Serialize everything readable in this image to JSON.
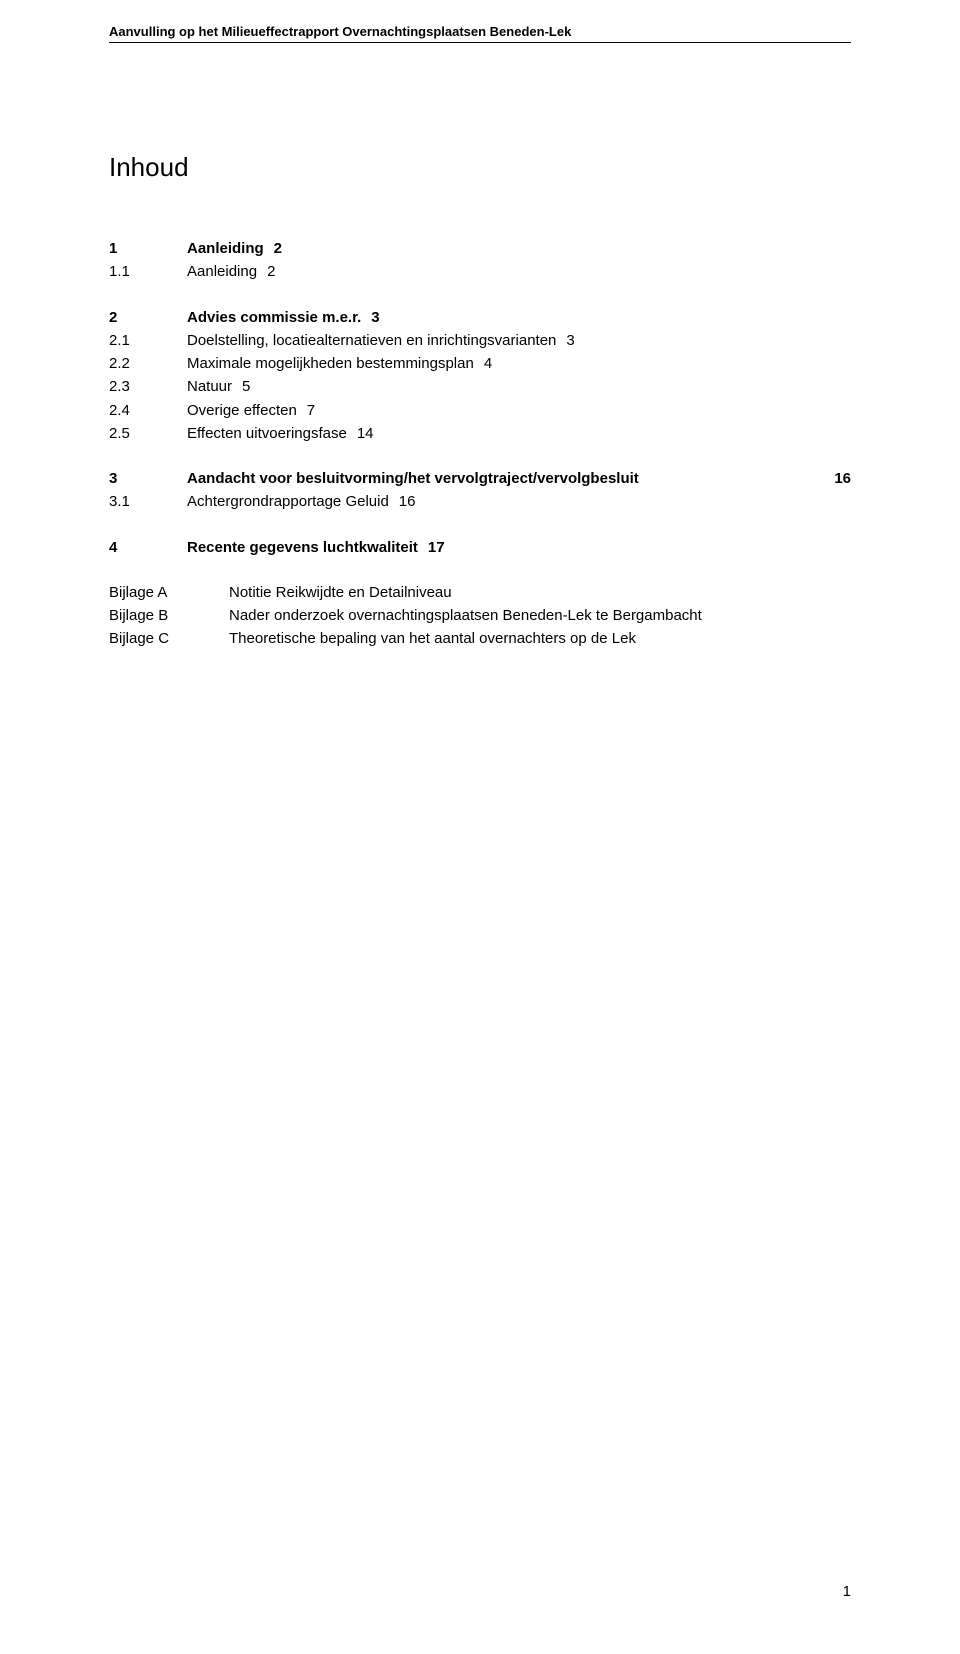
{
  "header": {
    "title": "Aanvulling op het Milieueffectrapport Overnachtingsplaatsen Beneden-Lek"
  },
  "doc": {
    "title": "Inhoud"
  },
  "toc": [
    {
      "num": "1",
      "text": "Aanleiding",
      "page": "2",
      "bold": true
    },
    {
      "num": "1.1",
      "text": "Aanleiding",
      "page": "2",
      "bold": false
    },
    {
      "gap": "med"
    },
    {
      "num": "2",
      "text": "Advies commissie m.e.r.",
      "page": "3",
      "bold": true
    },
    {
      "num": "2.1",
      "text": "Doelstelling, locatiealternatieven en inrichtingsvarianten",
      "page": "3",
      "bold": false
    },
    {
      "num": "2.2",
      "text": "Maximale mogelijkheden bestemmingsplan",
      "page": "4",
      "bold": false
    },
    {
      "num": "2.3",
      "text": "Natuur",
      "page": "5",
      "bold": false
    },
    {
      "num": "2.4",
      "text": "Overige effecten",
      "page": "7",
      "bold": false
    },
    {
      "num": "2.5",
      "text": "Effecten uitvoeringsfase",
      "page": "14",
      "bold": false
    },
    {
      "gap": "med"
    },
    {
      "num": "3",
      "text": "Aandacht voor besluitvorming/het vervolgtraject/vervolgbesluit",
      "page": "16",
      "bold": true
    },
    {
      "num": "3.1",
      "text": "Achtergrondrapportage Geluid",
      "page": "16",
      "bold": false
    },
    {
      "gap": "med"
    },
    {
      "num": "4",
      "text": "Recente gegevens luchtkwaliteit",
      "page": "17",
      "bold": true
    }
  ],
  "appendices": [
    {
      "label": "Bijlage A",
      "text": "Notitie Reikwijdte en Detailniveau"
    },
    {
      "label": "Bijlage B",
      "text": "Nader onderzoek overnachtingsplaatsen Beneden-Lek te Bergambacht"
    },
    {
      "label": "Bijlage C",
      "text": "Theoretische bepaling van het aantal overnachters op de Lek"
    }
  ],
  "footer": {
    "page_number": "1"
  }
}
